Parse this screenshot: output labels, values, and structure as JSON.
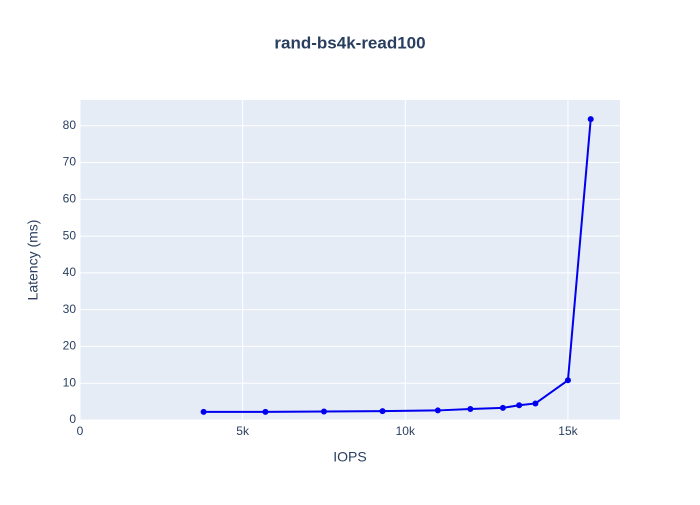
{
  "chart_data": {
    "type": "line",
    "title": "rand-bs4k-read100",
    "x_label": "IOPS",
    "y_label": "Latency (ms)",
    "x": [
      3800,
      5700,
      7500,
      9300,
      11000,
      12000,
      13000,
      13500,
      14000,
      15000,
      15700
    ],
    "series": [
      {
        "color": "#0000ee",
        "values": [
          2.2,
          2.2,
          2.3,
          2.4,
          2.6,
          3.0,
          3.3,
          4.0,
          4.5,
          10.8,
          81.8
        ]
      }
    ],
    "xlim": [
      0,
      16600
    ],
    "ylim": [
      0,
      87
    ],
    "xticks": [
      0,
      {
        "value": 5000,
        "label": "5k"
      },
      {
        "value": 10000,
        "label": "10k"
      },
      {
        "value": 15000,
        "label": "15k"
      }
    ],
    "yticks": [
      0,
      10,
      20,
      30,
      40,
      50,
      60,
      70,
      80
    ],
    "grid": true
  }
}
